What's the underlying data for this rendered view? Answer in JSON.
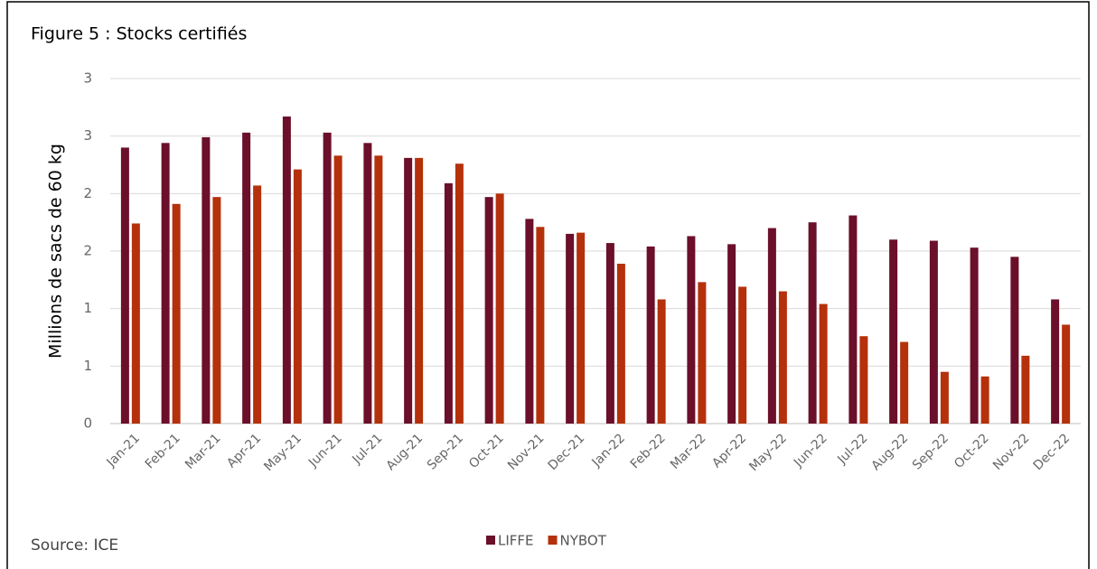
{
  "chart_data": {
    "type": "bar",
    "title": "Figure 5 : Stocks certifiés",
    "ylabel": "Millions de sacs de 60 kg",
    "source": "Source: ICE",
    "categories": [
      "Jan-21",
      "Feb-21",
      "Mar-21",
      "Apr-21",
      "May-21",
      "Jun-21",
      "Jul-21",
      "Aug-21",
      "Sep-21",
      "Oct-21",
      "Nov-21",
      "Dec-21",
      "Jan-22",
      "Feb-22",
      "Mar-22",
      "Apr-22",
      "May-22",
      "Jun-22",
      "Jul-22",
      "Aug-22",
      "Sep-22",
      "Oct-22",
      "Nov-22",
      "Dec-22"
    ],
    "series": [
      {
        "name": "LIFFE",
        "color": "#6b0f2a",
        "values": [
          2.4,
          2.44,
          2.49,
          2.53,
          2.67,
          2.53,
          2.44,
          2.31,
          2.09,
          1.97,
          1.78,
          1.65,
          1.57,
          1.54,
          1.63,
          1.56,
          1.7,
          1.75,
          1.81,
          1.6,
          1.59,
          1.53,
          1.45,
          1.08
        ]
      },
      {
        "name": "NYBOT",
        "color": "#b5310b",
        "values": [
          1.74,
          1.91,
          1.97,
          2.07,
          2.21,
          2.33,
          2.33,
          2.31,
          2.26,
          2.0,
          1.71,
          1.66,
          1.39,
          1.08,
          1.23,
          1.19,
          1.15,
          1.04,
          0.76,
          0.71,
          0.45,
          0.41,
          0.59,
          0.86
        ]
      }
    ],
    "ylim": [
      0,
      3
    ],
    "yticks": [
      0,
      {
        "value": 0.5,
        "label": "1"
      },
      1,
      {
        "value": 1.5,
        "label": "2"
      },
      2,
      {
        "value": 2.5,
        "label": "3"
      },
      3
    ],
    "grid": true,
    "legend": "bottom"
  }
}
